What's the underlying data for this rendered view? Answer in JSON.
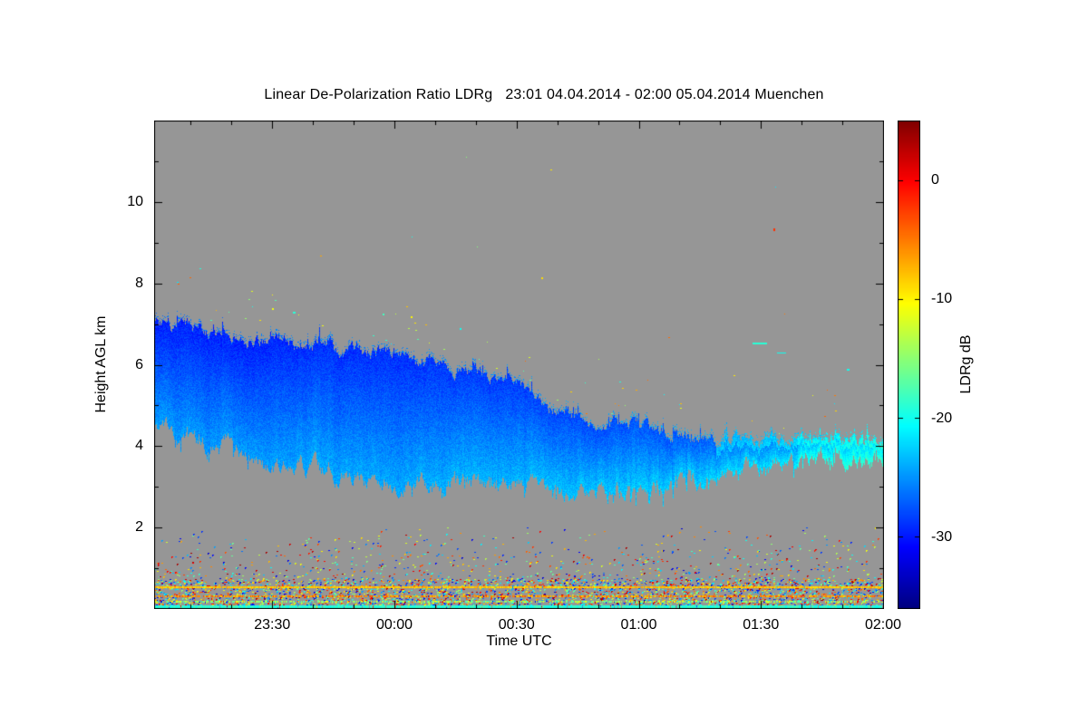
{
  "page": {
    "background_color": "#ffffff"
  },
  "chart_data": {
    "type": "heatmap",
    "title": "Linear De-Polarization Ratio LDRg   23:01 04.04.2014 - 02:00 05.04.2014 Muenchen",
    "xlabel": "Time UTC",
    "ylabel": "Height AGL km",
    "station": "Muenchen",
    "time_start": "23:01 04.04.2014",
    "time_end": "02:00 05.04.2014",
    "duration_minutes": 179,
    "ylim_km": [
      0,
      12
    ],
    "y_ticks": [
      2,
      4,
      6,
      8,
      10
    ],
    "y_minor_ticks": [
      1,
      3,
      5,
      7,
      9,
      11
    ],
    "x_ticks": [
      {
        "label": "23:30",
        "minute": 29
      },
      {
        "label": "00:00",
        "minute": 59
      },
      {
        "label": "00:30",
        "minute": 89
      },
      {
        "label": "01:00",
        "minute": 119
      },
      {
        "label": "01:30",
        "minute": 149
      },
      {
        "label": "02:00",
        "minute": 179
      }
    ],
    "no_data_color": "#969696",
    "colorbar": {
      "label": "LDRg dB",
      "ticks": [
        0,
        -10,
        -20,
        -30
      ],
      "vmin": -36,
      "vmax": 5,
      "colormap": "jet"
    },
    "cloud_band": {
      "description": "Descending ice/liquid cloud layer, LDRg mostly -29 to -23 dB (blue), lighter blue at band base and toward 01:30-02:00 where thin band sits near 4 km with cyan (-20 dB) patches.",
      "keyframes": [
        {
          "m": 0,
          "top": 7.0,
          "bot": 4.7,
          "v": -27.5
        },
        {
          "m": 12,
          "top": 6.85,
          "bot": 4.1,
          "v": -27.5
        },
        {
          "m": 25,
          "top": 6.6,
          "bot": 3.7,
          "v": -27.5
        },
        {
          "m": 40,
          "top": 6.5,
          "bot": 3.4,
          "v": -27.0
        },
        {
          "m": 60,
          "top": 6.25,
          "bot": 3.2,
          "v": -27.0
        },
        {
          "m": 75,
          "top": 5.95,
          "bot": 3.1,
          "v": -26.5
        },
        {
          "m": 88,
          "top": 5.6,
          "bot": 3.0,
          "v": -26.5
        },
        {
          "m": 97,
          "top": 5.0,
          "bot": 3.0,
          "v": -26.0
        },
        {
          "m": 105,
          "top": 4.65,
          "bot": 2.9,
          "v": -26.0
        },
        {
          "m": 118,
          "top": 4.5,
          "bot": 2.85,
          "v": -25.5
        },
        {
          "m": 128,
          "top": 4.35,
          "bot": 3.0,
          "v": -25.5
        },
        {
          "m": 138,
          "top": 4.15,
          "bot": 3.35,
          "v": -25.0
        },
        {
          "m": 150,
          "top": 4.1,
          "bot": 3.6,
          "v": -24.5
        },
        {
          "m": 165,
          "top": 4.15,
          "bot": 3.7,
          "v": -23.5
        },
        {
          "m": 179,
          "top": 4.1,
          "bot": 3.75,
          "v": -22.5
        }
      ]
    },
    "high_speckles": {
      "n": 70,
      "value_range": [
        -22,
        -4
      ],
      "description": "sparse colored pixels above cloud top"
    },
    "ground_clutter": {
      "n_scattered": 2400,
      "max_height_km": 2.15,
      "n_dense": 2600,
      "dense_height_km": 0.75,
      "value_range": [
        -33,
        4
      ],
      "description": "random multicolour clutter speckle below 2 km, densest below 1 km"
    },
    "ground_stripes": [
      {
        "h": 0.55,
        "v": -8,
        "thickness": 2,
        "coverage": 0.97,
        "value_jitter": 3
      },
      {
        "h": 0.33,
        "v": -6,
        "thickness": 2,
        "coverage": 0.7,
        "value_jitter": 6
      },
      {
        "h": 0.2,
        "v": -14,
        "thickness": 2,
        "coverage": 0.55,
        "value_jitter": 8
      },
      {
        "h": 0.1,
        "v": -19,
        "thickness": 3,
        "coverage": 0.95,
        "value_jitter": 3
      },
      {
        "h": 0.03,
        "v": -27,
        "thickness": 2,
        "coverage": 0.85,
        "value_jitter": 5
      }
    ],
    "artifacts": [
      {
        "m": 152,
        "h": 9.35,
        "v": -2,
        "w": 2,
        "hp": 3
      },
      {
        "m": 147,
        "h": 6.55,
        "v": -19,
        "w": 16,
        "hp": 2
      },
      {
        "m": 153,
        "h": 6.3,
        "v": -20,
        "w": 10,
        "hp": 1
      },
      {
        "m": 95,
        "h": 8.15,
        "v": -9,
        "w": 2,
        "hp": 2
      },
      {
        "m": 29,
        "h": 7.4,
        "v": -11,
        "w": 2,
        "hp": 2
      },
      {
        "m": 34,
        "h": 7.3,
        "v": -19,
        "w": 3,
        "hp": 2
      },
      {
        "m": 56,
        "h": 7.25,
        "v": -18,
        "w": 2,
        "hp": 2
      },
      {
        "m": 63,
        "h": 7.2,
        "v": -10,
        "w": 2,
        "hp": 2
      },
      {
        "m": 75,
        "h": 6.9,
        "v": -20,
        "w": 2,
        "hp": 2
      },
      {
        "m": 170,
        "h": 5.9,
        "v": -20,
        "w": 3,
        "hp": 2
      }
    ]
  }
}
